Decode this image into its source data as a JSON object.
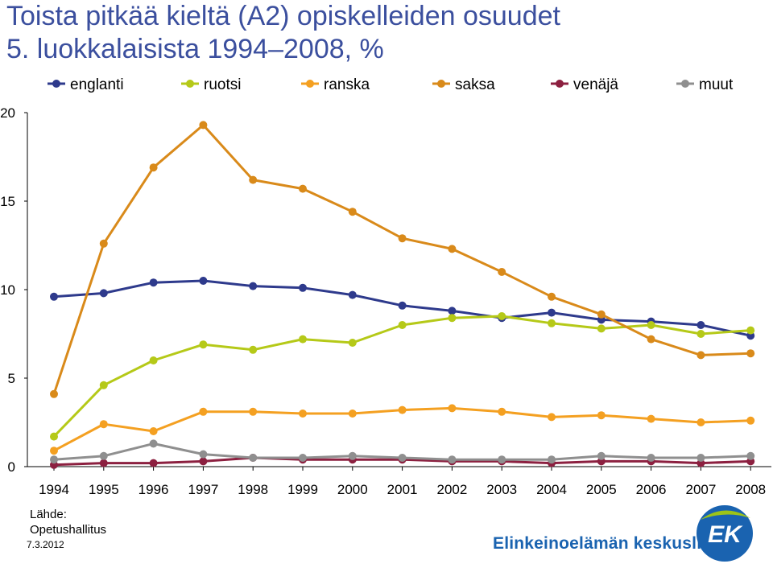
{
  "title": {
    "line1": "Toista pitkää kieltä (A2) opiskelleiden osuudet",
    "line2": "5. luokkalaisista 1994–2008, %"
  },
  "chart_data": {
    "type": "line",
    "categories": [
      "1994",
      "1995",
      "1996",
      "1997",
      "1998",
      "1999",
      "2000",
      "2001",
      "2002",
      "2003",
      "2004",
      "2005",
      "2006",
      "2007",
      "2008"
    ],
    "ylim": [
      0,
      20
    ],
    "yticks": [
      "0",
      "5",
      "10",
      "15",
      "20"
    ],
    "grid": false,
    "legend_position": "top",
    "series": [
      {
        "name": "englanti",
        "color": "#2e3a8c",
        "values": [
          9.6,
          9.8,
          10.4,
          10.5,
          10.2,
          10.1,
          9.7,
          9.1,
          8.8,
          8.4,
          8.7,
          8.3,
          8.2,
          8.0,
          7.4
        ]
      },
      {
        "name": "ruotsi",
        "color": "#b5c918",
        "values": [
          1.7,
          4.6,
          6.0,
          6.9,
          6.6,
          7.2,
          7.0,
          8.0,
          8.4,
          8.5,
          8.1,
          7.8,
          8.0,
          7.5,
          7.7
        ]
      },
      {
        "name": "ranska",
        "color": "#f4a021",
        "values": [
          0.9,
          2.4,
          2.0,
          3.1,
          3.1,
          3.0,
          3.0,
          3.2,
          3.3,
          3.1,
          2.8,
          2.9,
          2.7,
          2.5,
          2.6
        ]
      },
      {
        "name": "saksa",
        "color": "#d98a1a",
        "values": [
          4.1,
          12.6,
          16.9,
          19.3,
          16.2,
          15.7,
          14.4,
          12.9,
          12.3,
          11.0,
          9.6,
          8.6,
          7.2,
          6.3,
          6.4
        ]
      },
      {
        "name": "venäjä",
        "color": "#8c2040",
        "values": [
          0.1,
          0.2,
          0.2,
          0.3,
          0.5,
          0.4,
          0.4,
          0.4,
          0.3,
          0.3,
          0.2,
          0.3,
          0.3,
          0.2,
          0.3
        ]
      },
      {
        "name": "muut",
        "color": "#8f8f8f",
        "values": [
          0.4,
          0.6,
          1.3,
          0.7,
          0.5,
          0.5,
          0.6,
          0.5,
          0.4,
          0.4,
          0.4,
          0.6,
          0.5,
          0.5,
          0.6
        ]
      }
    ]
  },
  "footer": {
    "source_label": "Lähde:",
    "source_name": "Opetushallitus",
    "date": "7.3.2012",
    "org_name": "Elinkeinoelämän keskusliitto",
    "logo_text": "EK"
  }
}
